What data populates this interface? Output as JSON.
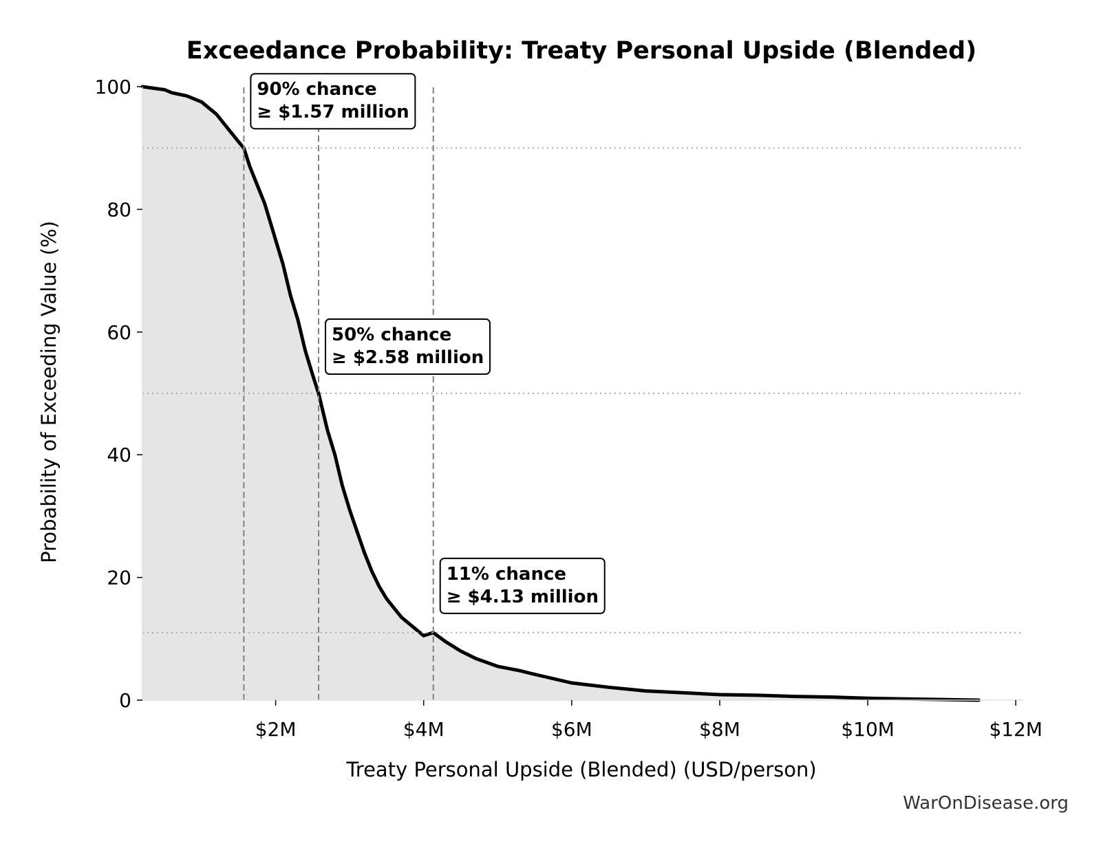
{
  "chart_data": {
    "type": "area",
    "title": "Exceedance Probability: Treaty Personal Upside (Blended)",
    "xlabel": "Treaty Personal Upside (Blended) (USD/person)",
    "ylabel": "Probability of Exceeding Value (%)",
    "xlim": [
      0.2,
      12.1
    ],
    "ylim": [
      0,
      100
    ],
    "x_unit": "million USD",
    "x_ticks": [
      {
        "value": 2,
        "label": "$2M"
      },
      {
        "value": 4,
        "label": "$4M"
      },
      {
        "value": 6,
        "label": "$6M"
      },
      {
        "value": 8,
        "label": "$8M"
      },
      {
        "value": 10,
        "label": "$10M"
      },
      {
        "value": 12,
        "label": "$12M"
      }
    ],
    "y_ticks": [
      {
        "value": 0,
        "label": "0"
      },
      {
        "value": 20,
        "label": "20"
      },
      {
        "value": 40,
        "label": "40"
      },
      {
        "value": 60,
        "label": "60"
      },
      {
        "value": 80,
        "label": "80"
      },
      {
        "value": 100,
        "label": "100"
      }
    ],
    "series": [
      {
        "x": [
          0.2,
          0.5,
          0.6,
          0.8,
          1.0,
          1.1,
          1.2,
          1.3,
          1.4,
          1.5,
          1.57,
          1.65,
          1.75,
          1.85,
          1.9,
          2.0,
          2.1,
          2.2,
          2.3,
          2.4,
          2.5,
          2.58,
          2.7,
          2.8,
          2.9,
          3.0,
          3.1,
          3.2,
          3.3,
          3.4,
          3.5,
          3.6,
          3.7,
          3.8,
          3.9,
          4.0,
          4.13,
          4.3,
          4.5,
          4.7,
          5.0,
          5.3,
          5.5,
          6.0,
          6.5,
          7.0,
          7.5,
          8.0,
          8.5,
          9.0,
          9.5,
          10.0,
          10.5,
          11.0,
          11.5
        ],
        "y": [
          100,
          99.5,
          99,
          98.5,
          97.5,
          96.5,
          95.5,
          94,
          92.5,
          91,
          90,
          87,
          84,
          81,
          79,
          75,
          71,
          66,
          62,
          57,
          53,
          50,
          44,
          40,
          35,
          31,
          27.5,
          24,
          21,
          18.5,
          16.5,
          15,
          13.5,
          12.5,
          11.5,
          10.5,
          11,
          9.5,
          8,
          6.8,
          5.5,
          4.8,
          4.2,
          2.8,
          2.1,
          1.5,
          1.2,
          0.9,
          0.8,
          0.6,
          0.5,
          0.3,
          0.2,
          0.1,
          0
        ]
      }
    ],
    "reference_lines": {
      "vertical_x": [
        1.57,
        2.58,
        4.13
      ],
      "horizontal_y": [
        90,
        50,
        11
      ]
    },
    "annotations": [
      {
        "x": 1.57,
        "y": 90,
        "line1": "90% chance",
        "line2": "≥ $1.57 million"
      },
      {
        "x": 2.58,
        "y": 50,
        "line1": "50% chance",
        "line2": "≥ $2.58 million"
      },
      {
        "x": 4.13,
        "y": 11,
        "line1": "11% chance",
        "line2": "≥ $4.13 million"
      }
    ],
    "grid": false,
    "fill_color": "#e5e5e5",
    "line_color": "#000000",
    "reference_line_color": "#808080",
    "guide_line_color": "#aaaaaa"
  },
  "watermark": "WarOnDisease.org"
}
